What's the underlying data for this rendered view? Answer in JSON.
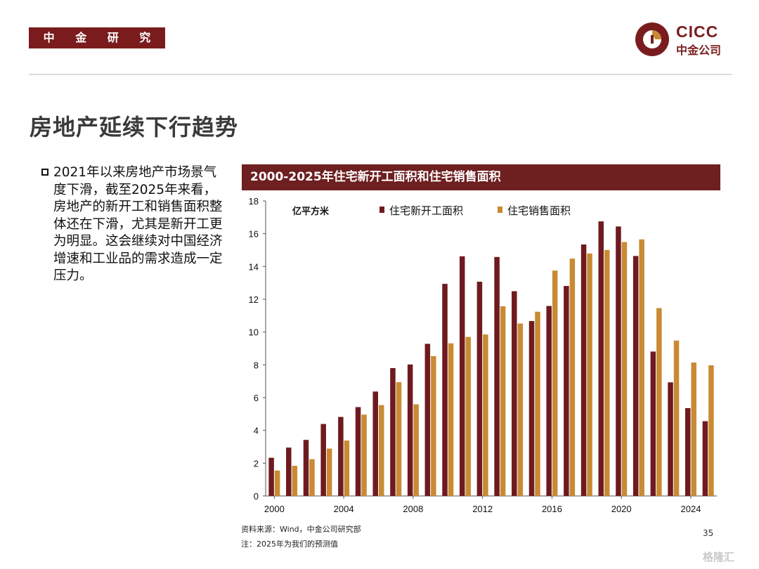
{
  "header": {
    "dept_label": "中 金 研 究 部",
    "logo_en": "CICC",
    "logo_cn": "中金公司"
  },
  "slide": {
    "title": "房地产延续下行趋势",
    "bullet": "2021年以来房地产市场景气度下滑，截至2025年来看，房地产的新开工和销售面积整体还在下滑，尤其是新开工更为明显。这会继续对中国经济增速和工业品的需求造成一定压力。",
    "page_number": "35",
    "watermark": "格隆汇"
  },
  "chart_data": {
    "type": "bar",
    "title": "2000-2025年住宅新开工面积和住宅销售面积",
    "ylabel": "亿平方米",
    "ylim": [
      0,
      18
    ],
    "yticks": [
      0,
      2,
      4,
      6,
      8,
      10,
      12,
      14,
      16,
      18
    ],
    "x": [
      2000,
      2001,
      2002,
      2003,
      2004,
      2005,
      2006,
      2007,
      2008,
      2009,
      2010,
      2011,
      2012,
      2013,
      2014,
      2015,
      2016,
      2017,
      2018,
      2019,
      2020,
      2021,
      2022,
      2023,
      2024,
      2025
    ],
    "xtick_labels": [
      "2000",
      "2004",
      "2008",
      "2012",
      "2016",
      "2020",
      "2024"
    ],
    "xtick_values": [
      2000,
      2004,
      2008,
      2012,
      2016,
      2020,
      2024
    ],
    "legend_position": "top",
    "series": [
      {
        "name": "住宅新开工面积",
        "color": "#6e1a1f",
        "values": [
          2.33,
          2.95,
          3.42,
          4.39,
          4.82,
          5.42,
          6.37,
          7.8,
          8.02,
          9.28,
          12.94,
          14.62,
          13.07,
          14.58,
          12.49,
          10.67,
          11.59,
          12.81,
          15.34,
          16.75,
          16.44,
          14.64,
          8.81,
          6.93,
          5.36,
          4.56
        ]
      },
      {
        "name": "住宅销售面积",
        "color": "#c98a34",
        "values": [
          1.55,
          1.84,
          2.24,
          2.89,
          3.38,
          4.96,
          5.54,
          6.94,
          5.59,
          8.53,
          9.31,
          9.7,
          9.85,
          11.57,
          10.52,
          11.24,
          13.75,
          14.48,
          14.79,
          15.01,
          15.49,
          15.65,
          11.46,
          9.48,
          8.14,
          7.97
        ]
      }
    ]
  },
  "footer": {
    "source": "资料来源：Wind，中金公司研究部",
    "note": "注：2025年为我们的预测值"
  }
}
